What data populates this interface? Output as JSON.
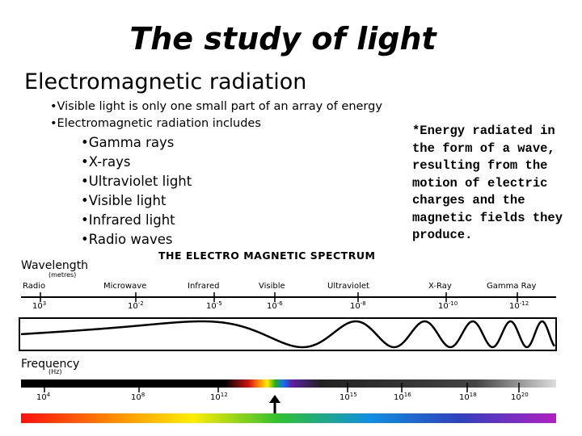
{
  "title": "The study of light",
  "subtitle": "Electromagnetic radiation",
  "bullets": [
    "•Visible light is only one small part of an array of energy",
    "•Electromagnetic radiation includes"
  ],
  "sub_bullets": [
    "•Gamma rays",
    "•X-rays",
    "•Ultraviolet light",
    "•Visible light",
    "•Infrared light",
    "•Radio waves"
  ],
  "definition": "*Energy radiated in the form of a wave, resulting from the motion of electric charges and the magnetic fields they produce.",
  "diagram": {
    "title": "THE ELECTRO MAGNETIC SPECTRUM",
    "wavelength_label": "Wavelength",
    "wavelength_unit": "(metres)",
    "frequency_label": "Frequency",
    "frequency_unit": "(Hz)",
    "regions": [
      "Radio",
      "Microwave",
      "Infrared",
      "Visible",
      "Ultraviolet",
      "X-Ray",
      "Gamma Ray"
    ],
    "wavelength_ticks": [
      {
        "base": "10",
        "exp": "3"
      },
      {
        "base": "10",
        "exp": "-2"
      },
      {
        "base": "10",
        "exp": "-5"
      },
      {
        "base": "10",
        "exp": "-6"
      },
      {
        "base": "10",
        "exp": "-8"
      },
      {
        "base": "10",
        "exp": "-10"
      },
      {
        "base": "10",
        "exp": "-12"
      }
    ],
    "frequency_ticks": [
      {
        "base": "10",
        "exp": "4"
      },
      {
        "base": "10",
        "exp": "8"
      },
      {
        "base": "10",
        "exp": "12"
      },
      {
        "base": "10",
        "exp": "15"
      },
      {
        "base": "10",
        "exp": "16"
      },
      {
        "base": "10",
        "exp": "18"
      },
      {
        "base": "10",
        "exp": "20"
      }
    ]
  }
}
